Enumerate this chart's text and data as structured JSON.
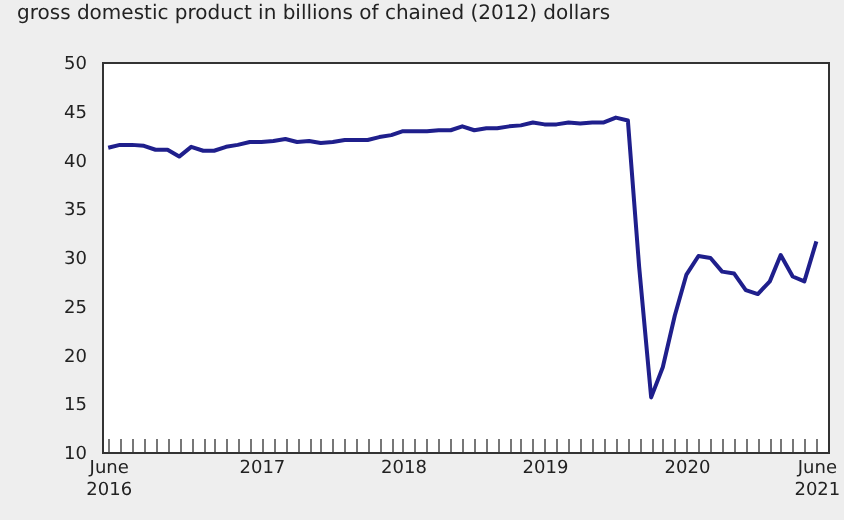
{
  "chart_data": {
    "type": "line",
    "ylabel": "gross domestic product in billions of chained (2012) dollars",
    "x": [
      "2016-06",
      "2016-07",
      "2016-08",
      "2016-09",
      "2016-10",
      "2016-11",
      "2016-12",
      "2017-01",
      "2017-02",
      "2017-03",
      "2017-04",
      "2017-05",
      "2017-06",
      "2017-07",
      "2017-08",
      "2017-09",
      "2017-10",
      "2017-11",
      "2017-12",
      "2018-01",
      "2018-02",
      "2018-03",
      "2018-04",
      "2018-05",
      "2018-06",
      "2018-07",
      "2018-08",
      "2018-09",
      "2018-10",
      "2018-11",
      "2018-12",
      "2019-01",
      "2019-02",
      "2019-03",
      "2019-04",
      "2019-05",
      "2019-06",
      "2019-07",
      "2019-08",
      "2019-09",
      "2019-10",
      "2019-11",
      "2019-12",
      "2020-01",
      "2020-02",
      "2020-03",
      "2020-04",
      "2020-05",
      "2020-06",
      "2020-07",
      "2020-08",
      "2020-09",
      "2020-10",
      "2020-11",
      "2020-12",
      "2021-01",
      "2021-02",
      "2021-03",
      "2021-04",
      "2021-05",
      "2021-06"
    ],
    "series": [
      {
        "color": "#1f1f8c",
        "values": [
          41.2,
          41.5,
          41.5,
          41.4,
          41.0,
          41.0,
          40.3,
          41.3,
          40.9,
          40.9,
          41.3,
          41.5,
          41.8,
          41.8,
          41.9,
          42.1,
          41.8,
          41.9,
          41.7,
          41.8,
          42.0,
          42.0,
          42.0,
          42.3,
          42.5,
          42.9,
          42.9,
          42.9,
          43.0,
          43.0,
          43.4,
          43.0,
          43.2,
          43.2,
          43.4,
          43.5,
          43.8,
          43.6,
          43.6,
          43.8,
          43.7,
          43.8,
          43.8,
          44.3,
          44.0,
          29.0,
          15.6,
          18.7,
          24.0,
          28.2,
          30.1,
          29.9,
          28.5,
          28.3,
          26.6,
          26.2,
          27.5,
          30.2,
          28.0,
          27.5,
          31.6
        ]
      }
    ],
    "xlim": [
      "2016-05-16",
      "2021-07-01"
    ],
    "xticks": [
      {
        "value": "2016-06",
        "label": "June 2016"
      },
      {
        "value": "2016-07",
        "label": null
      },
      {
        "value": "2016-08",
        "label": null
      },
      {
        "value": "2016-09",
        "label": null
      },
      {
        "value": "2016-10",
        "label": null
      },
      {
        "value": "2016-11",
        "label": null
      },
      {
        "value": "2016-12",
        "label": null
      },
      {
        "value": "2017-01",
        "label": null
      },
      {
        "value": "2017-02",
        "label": null
      },
      {
        "value": "2017-03",
        "label": null
      },
      {
        "value": "2017-04",
        "label": null
      },
      {
        "value": "2017-05",
        "label": null
      },
      {
        "value": "2017-06",
        "label": null
      },
      {
        "value": "2017-07",
        "label": "2017"
      },
      {
        "value": "2017-08",
        "label": null
      },
      {
        "value": "2017-09",
        "label": null
      },
      {
        "value": "2017-10",
        "label": null
      },
      {
        "value": "2017-11",
        "label": null
      },
      {
        "value": "2017-12",
        "label": null
      },
      {
        "value": "2018-01",
        "label": null
      },
      {
        "value": "2018-02",
        "label": null
      },
      {
        "value": "2018-03",
        "label": null
      },
      {
        "value": "2018-04",
        "label": null
      },
      {
        "value": "2018-05",
        "label": null
      },
      {
        "value": "2018-06",
        "label": null
      },
      {
        "value": "2018-07",
        "label": "2018"
      },
      {
        "value": "2018-08",
        "label": null
      },
      {
        "value": "2018-09",
        "label": null
      },
      {
        "value": "2018-10",
        "label": null
      },
      {
        "value": "2018-11",
        "label": null
      },
      {
        "value": "2018-12",
        "label": null
      },
      {
        "value": "2019-01",
        "label": null
      },
      {
        "value": "2019-02",
        "label": null
      },
      {
        "value": "2019-03",
        "label": null
      },
      {
        "value": "2019-04",
        "label": null
      },
      {
        "value": "2019-05",
        "label": null
      },
      {
        "value": "2019-06",
        "label": null
      },
      {
        "value": "2019-07",
        "label": "2019"
      },
      {
        "value": "2019-08",
        "label": null
      },
      {
        "value": "2019-09",
        "label": null
      },
      {
        "value": "2019-10",
        "label": null
      },
      {
        "value": "2019-11",
        "label": null
      },
      {
        "value": "2019-12",
        "label": null
      },
      {
        "value": "2020-01",
        "label": null
      },
      {
        "value": "2020-02",
        "label": null
      },
      {
        "value": "2020-03",
        "label": null
      },
      {
        "value": "2020-04",
        "label": null
      },
      {
        "value": "2020-05",
        "label": null
      },
      {
        "value": "2020-06",
        "label": null
      },
      {
        "value": "2020-07",
        "label": "2020"
      },
      {
        "value": "2020-08",
        "label": null
      },
      {
        "value": "2020-09",
        "label": null
      },
      {
        "value": "2020-10",
        "label": null
      },
      {
        "value": "2020-11",
        "label": null
      },
      {
        "value": "2020-12",
        "label": null
      },
      {
        "value": "2021-01",
        "label": null
      },
      {
        "value": "2021-02",
        "label": null
      },
      {
        "value": "2021-03",
        "label": null
      },
      {
        "value": "2021-04",
        "label": null
      },
      {
        "value": "2021-05",
        "label": null
      },
      {
        "value": "2021-06",
        "label": "June 2021"
      }
    ],
    "ylim": [
      10,
      50
    ],
    "yticks": [
      10,
      15,
      20,
      25,
      30,
      35,
      40,
      45,
      50
    ]
  }
}
